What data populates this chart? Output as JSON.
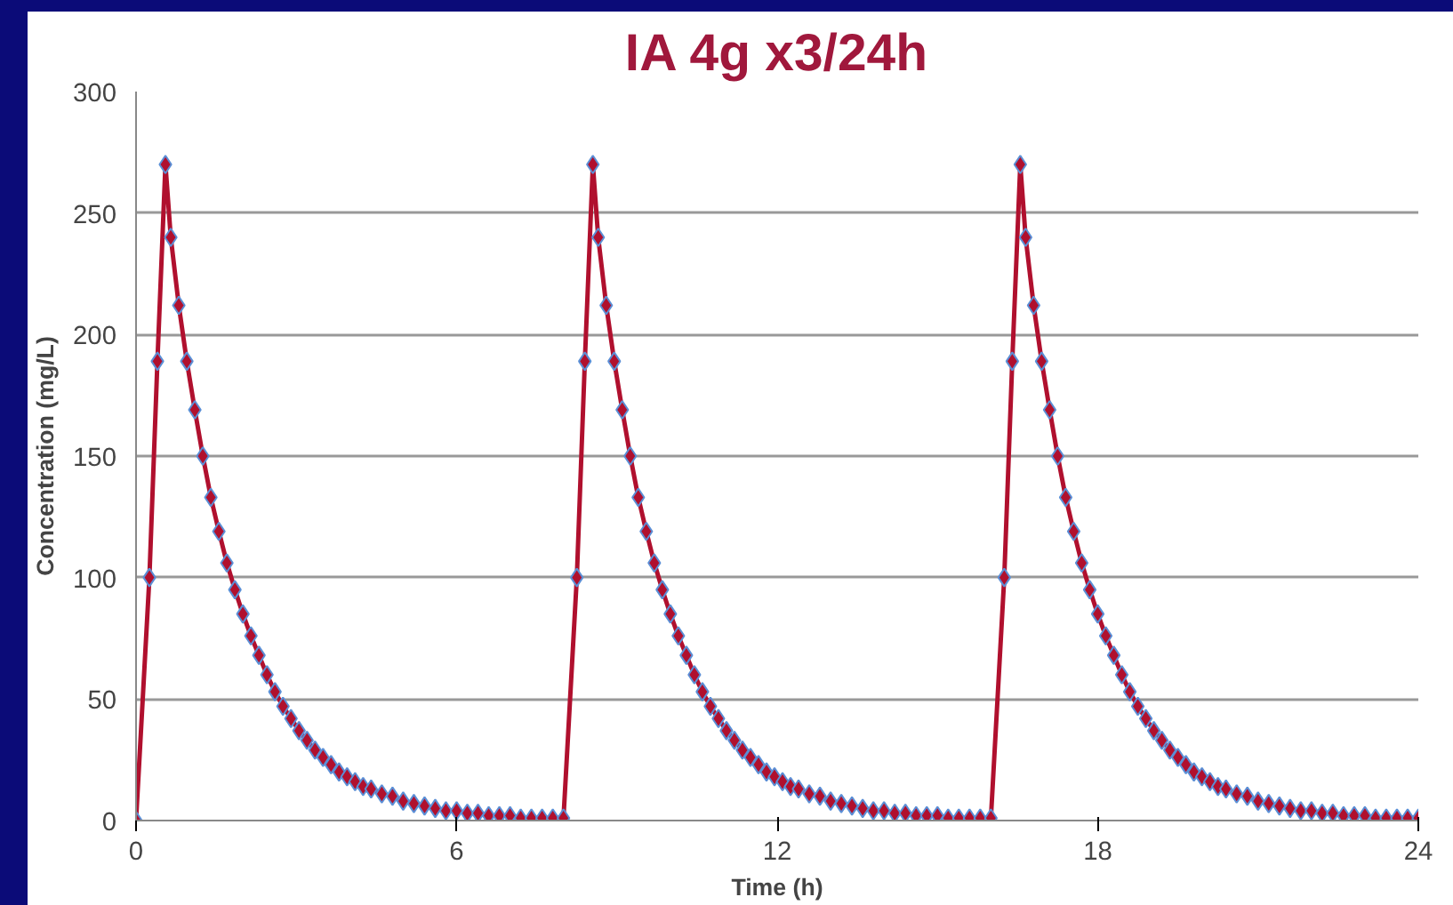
{
  "chart_data": {
    "type": "line",
    "title": "IA 4g x3/24h",
    "xlabel": "Time (h)",
    "ylabel": "Concentration (mg/L)",
    "xlim": [
      0,
      24
    ],
    "xticks": [
      0,
      6,
      12,
      18,
      24
    ],
    "ylim": [
      0,
      300
    ],
    "yticks": [
      0,
      50,
      100,
      150,
      200,
      250,
      300
    ],
    "grid": "y",
    "marker": "diamond",
    "line_style": "solid",
    "series": [
      {
        "color": "#b0102e",
        "x": [
          0,
          0.25,
          0.4,
          0.55,
          0.65,
          0.8,
          0.95,
          1.1,
          1.25,
          1.4,
          1.55,
          1.7,
          1.85,
          2,
          2.15,
          2.3,
          2.45,
          2.6,
          2.75,
          2.9,
          3.05,
          3.2,
          3.35,
          3.5,
          3.65,
          3.8,
          3.95,
          4.1,
          4.25,
          4.4,
          4.6,
          4.8,
          5,
          5.2,
          5.4,
          5.6,
          5.8,
          6,
          6.2,
          6.4,
          6.6,
          6.8,
          7,
          7.2,
          7.4,
          7.6,
          7.8,
          8,
          8.25,
          8.4,
          8.55,
          8.65,
          8.8,
          8.95,
          9.1,
          9.25,
          9.4,
          9.55,
          9.7,
          9.85,
          10,
          10.15,
          10.3,
          10.45,
          10.6,
          10.75,
          10.9,
          11.05,
          11.2,
          11.35,
          11.5,
          11.65,
          11.8,
          11.95,
          12.1,
          12.25,
          12.4,
          12.6,
          12.8,
          13,
          13.2,
          13.4,
          13.6,
          13.8,
          14,
          14.2,
          14.4,
          14.6,
          14.8,
          15,
          15.2,
          15.4,
          15.6,
          15.8,
          16,
          16.25,
          16.4,
          16.55,
          16.65,
          16.8,
          16.95,
          17.1,
          17.25,
          17.4,
          17.55,
          17.7,
          17.85,
          18,
          18.15,
          18.3,
          18.45,
          18.6,
          18.75,
          18.9,
          19.05,
          19.2,
          19.35,
          19.5,
          19.65,
          19.8,
          19.95,
          20.1,
          20.25,
          20.4,
          20.6,
          20.8,
          21,
          21.2,
          21.4,
          21.6,
          21.8,
          22,
          22.2,
          22.4,
          22.6,
          22.8,
          23,
          23.2,
          23.4,
          23.6,
          23.8,
          24
        ],
        "values": [
          0,
          100,
          189,
          270,
          240,
          212,
          189,
          169,
          150,
          133,
          119,
          106,
          95,
          85,
          76,
          68,
          60,
          53,
          47,
          42,
          37,
          33,
          29,
          26,
          23,
          20,
          18,
          16,
          14,
          13,
          11,
          10,
          8,
          7,
          6,
          5,
          4,
          4,
          3,
          3,
          2,
          2,
          2,
          1,
          1,
          1,
          1,
          1,
          100,
          189,
          270,
          240,
          212,
          189,
          169,
          150,
          133,
          119,
          106,
          95,
          85,
          76,
          68,
          60,
          53,
          47,
          42,
          37,
          33,
          29,
          26,
          23,
          20,
          18,
          16,
          14,
          13,
          11,
          10,
          8,
          7,
          6,
          5,
          4,
          4,
          3,
          3,
          2,
          2,
          2,
          1,
          1,
          1,
          1,
          1,
          100,
          189,
          270,
          240,
          212,
          189,
          169,
          150,
          133,
          119,
          106,
          95,
          85,
          76,
          68,
          60,
          53,
          47,
          42,
          37,
          33,
          29,
          26,
          23,
          20,
          18,
          16,
          14,
          13,
          11,
          10,
          8,
          7,
          6,
          5,
          4,
          4,
          3,
          3,
          2,
          2,
          2,
          1,
          1,
          1,
          1,
          1
        ]
      }
    ]
  }
}
